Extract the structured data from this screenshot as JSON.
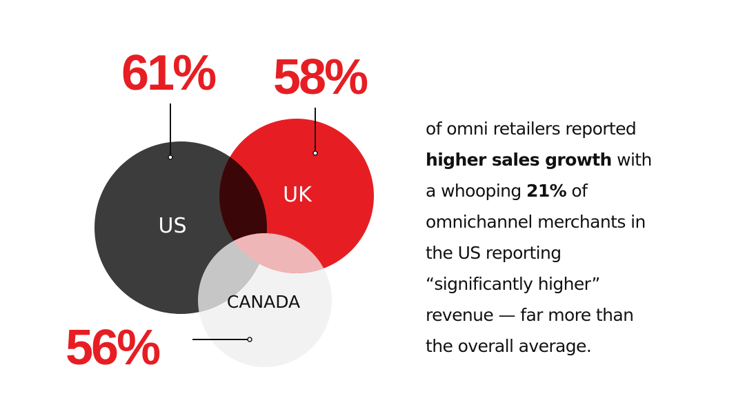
{
  "colors": {
    "red": "#e61e23",
    "us": "#3c3c3c",
    "us_uk_overlap": "#3a0608",
    "canada": "#f2f2f2",
    "canada_us_overlap": "#c6c6c6",
    "canada_uk_overlap": "#efb6b8",
    "text": "#111111"
  },
  "stats": {
    "us": "61%",
    "uk": "58%",
    "canada": "56%"
  },
  "circles": {
    "us": "US",
    "uk": "UK",
    "canada": "CANADA"
  },
  "copy": {
    "line1": "of omni retailers reported",
    "line2_bold": "higher sales growth",
    "line2_rest": " with",
    "line3_start": "a whooping ",
    "line3_bold": "21%",
    "line3_end": " of",
    "line4": "omnichannel merchants in",
    "line5": "the US reporting",
    "line6": "“significantly higher”",
    "line7": "revenue — far more than",
    "line8": "the overall average."
  }
}
